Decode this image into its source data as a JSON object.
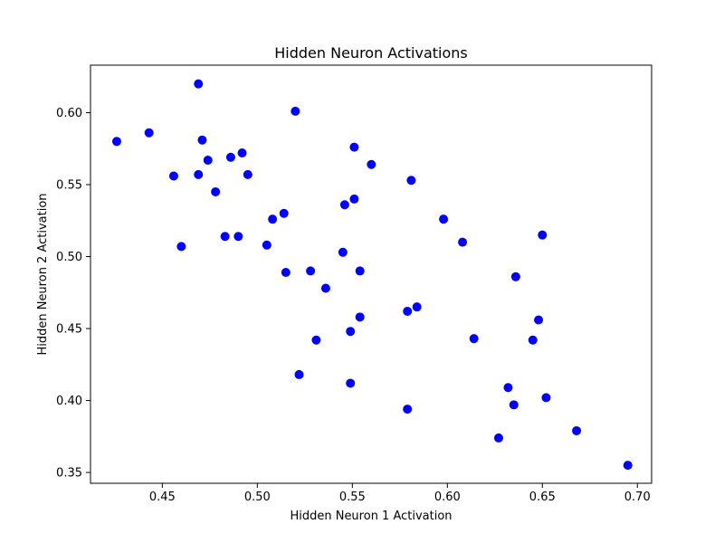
{
  "chart_data": {
    "type": "scatter",
    "title": "Hidden Neuron Activations",
    "xlabel": "Hidden Neuron 1 Activation",
    "ylabel": "Hidden Neuron 2 Activation",
    "xlim": [
      0.4122,
      0.7075
    ],
    "ylim": [
      0.3425,
      0.633
    ],
    "xticks": [
      0.45,
      0.5,
      0.55,
      0.6,
      0.65,
      0.7
    ],
    "xtick_labels": [
      "0.45",
      "0.50",
      "0.55",
      "0.60",
      "0.65",
      "0.70"
    ],
    "yticks": [
      0.35,
      0.4,
      0.45,
      0.5,
      0.55,
      0.6
    ],
    "ytick_labels": [
      "0.35",
      "0.40",
      "0.45",
      "0.50",
      "0.55",
      "0.60"
    ],
    "grid": false,
    "marker_color": "#0000ff",
    "series": [
      {
        "x": [
          0.426,
          0.443,
          0.456,
          0.46,
          0.469,
          0.469,
          0.471,
          0.474,
          0.478,
          0.483,
          0.486,
          0.49,
          0.492,
          0.495,
          0.505,
          0.508,
          0.514,
          0.515,
          0.52,
          0.522,
          0.528,
          0.531,
          0.536,
          0.545,
          0.546,
          0.549,
          0.549,
          0.551,
          0.551,
          0.554,
          0.554,
          0.56,
          0.579,
          0.579,
          0.581,
          0.584,
          0.598,
          0.608,
          0.614,
          0.627,
          0.632,
          0.635,
          0.636,
          0.645,
          0.648,
          0.65,
          0.652,
          0.668,
          0.695
        ],
        "y": [
          0.58,
          0.586,
          0.556,
          0.507,
          0.62,
          0.557,
          0.581,
          0.567,
          0.545,
          0.514,
          0.569,
          0.514,
          0.572,
          0.557,
          0.508,
          0.526,
          0.53,
          0.489,
          0.601,
          0.418,
          0.49,
          0.442,
          0.478,
          0.503,
          0.536,
          0.448,
          0.412,
          0.576,
          0.54,
          0.49,
          0.458,
          0.564,
          0.462,
          0.394,
          0.553,
          0.465,
          0.526,
          0.51,
          0.443,
          0.374,
          0.409,
          0.397,
          0.486,
          0.442,
          0.456,
          0.515,
          0.402,
          0.379,
          0.355
        ]
      }
    ]
  }
}
